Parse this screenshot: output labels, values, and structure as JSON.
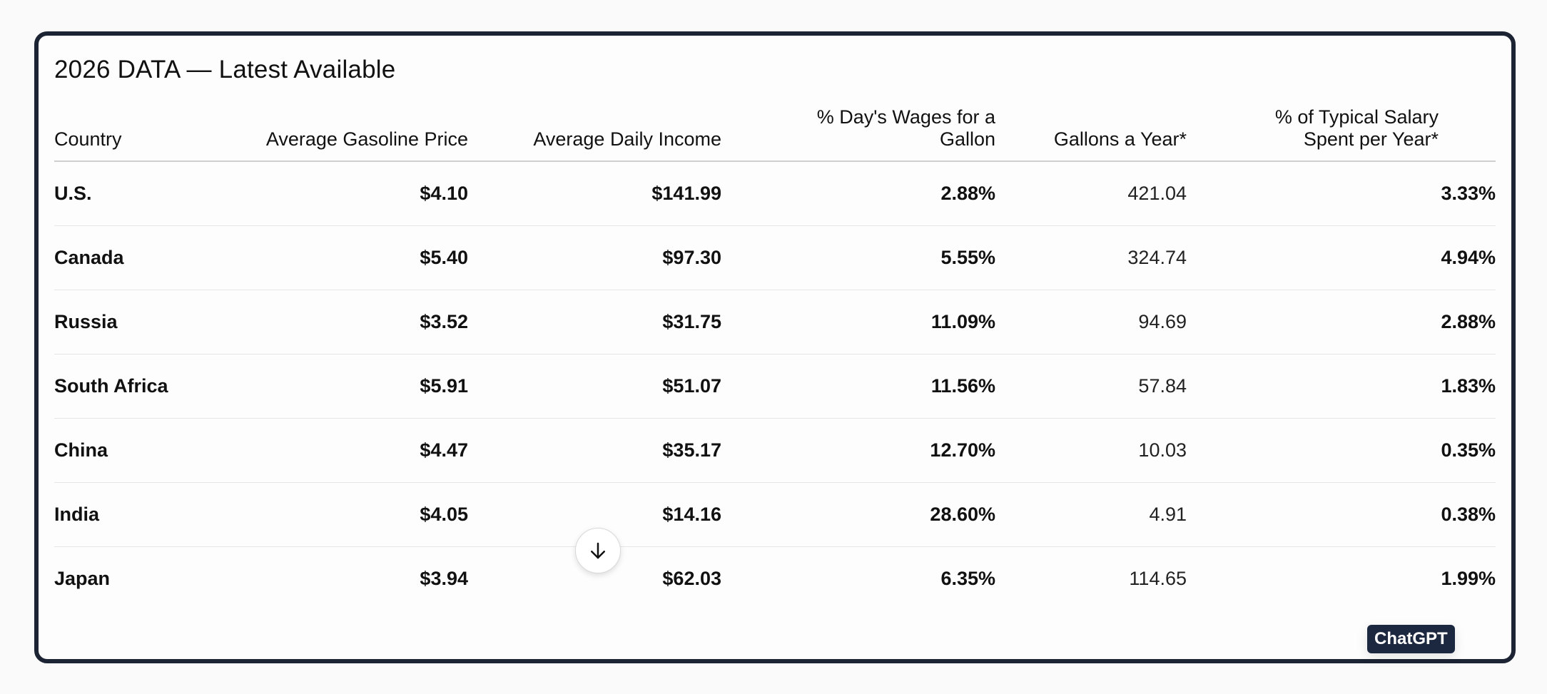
{
  "title": "2026 DATA — Latest Available",
  "table": {
    "headers": {
      "country": "Country",
      "gas_price": "Average Gasoline Price",
      "daily_income": "Average Daily Income",
      "wages_line1": "% Day's Wages for a",
      "wages_line2": "Gallon",
      "gallons": "Gallons a Year*",
      "salary_line1": "% of Typical Salary",
      "salary_line2": "Spent per Year*"
    },
    "rows": [
      {
        "country": "U.S.",
        "gas_price": "$4.10",
        "daily_income": "$141.99",
        "wages": "2.88%",
        "gallons": "421.04",
        "salary": "3.33%"
      },
      {
        "country": "Canada",
        "gas_price": "$5.40",
        "daily_income": "$97.30",
        "wages": "5.55%",
        "gallons": "324.74",
        "salary": "4.94%"
      },
      {
        "country": "Russia",
        "gas_price": "$3.52",
        "daily_income": "$31.75",
        "wages": "11.09%",
        "gallons": "94.69",
        "salary": "2.88%"
      },
      {
        "country": "South Africa",
        "gas_price": "$5.91",
        "daily_income": "$51.07",
        "wages": "11.56%",
        "gallons": "57.84",
        "salary": "1.83%"
      },
      {
        "country": "China",
        "gas_price": "$4.47",
        "daily_income": "$35.17",
        "wages": "12.70%",
        "gallons": "10.03",
        "salary": "0.35%"
      },
      {
        "country": "India",
        "gas_price": "$4.05",
        "daily_income": "$14.16",
        "wages": "28.60%",
        "gallons": "4.91",
        "salary": "0.38%"
      },
      {
        "country": "Japan",
        "gas_price": "$3.94",
        "daily_income": "$62.03",
        "wages": "6.35%",
        "gallons": "114.65",
        "salary": "1.99%"
      }
    ]
  },
  "scroll_button": {
    "icon": "arrow-down-icon"
  },
  "badge": {
    "label": "ChatGPT"
  },
  "colors": {
    "frame_border": "#1c2333",
    "badge_bg": "#1c2840",
    "page_bg": "#fafafa"
  }
}
